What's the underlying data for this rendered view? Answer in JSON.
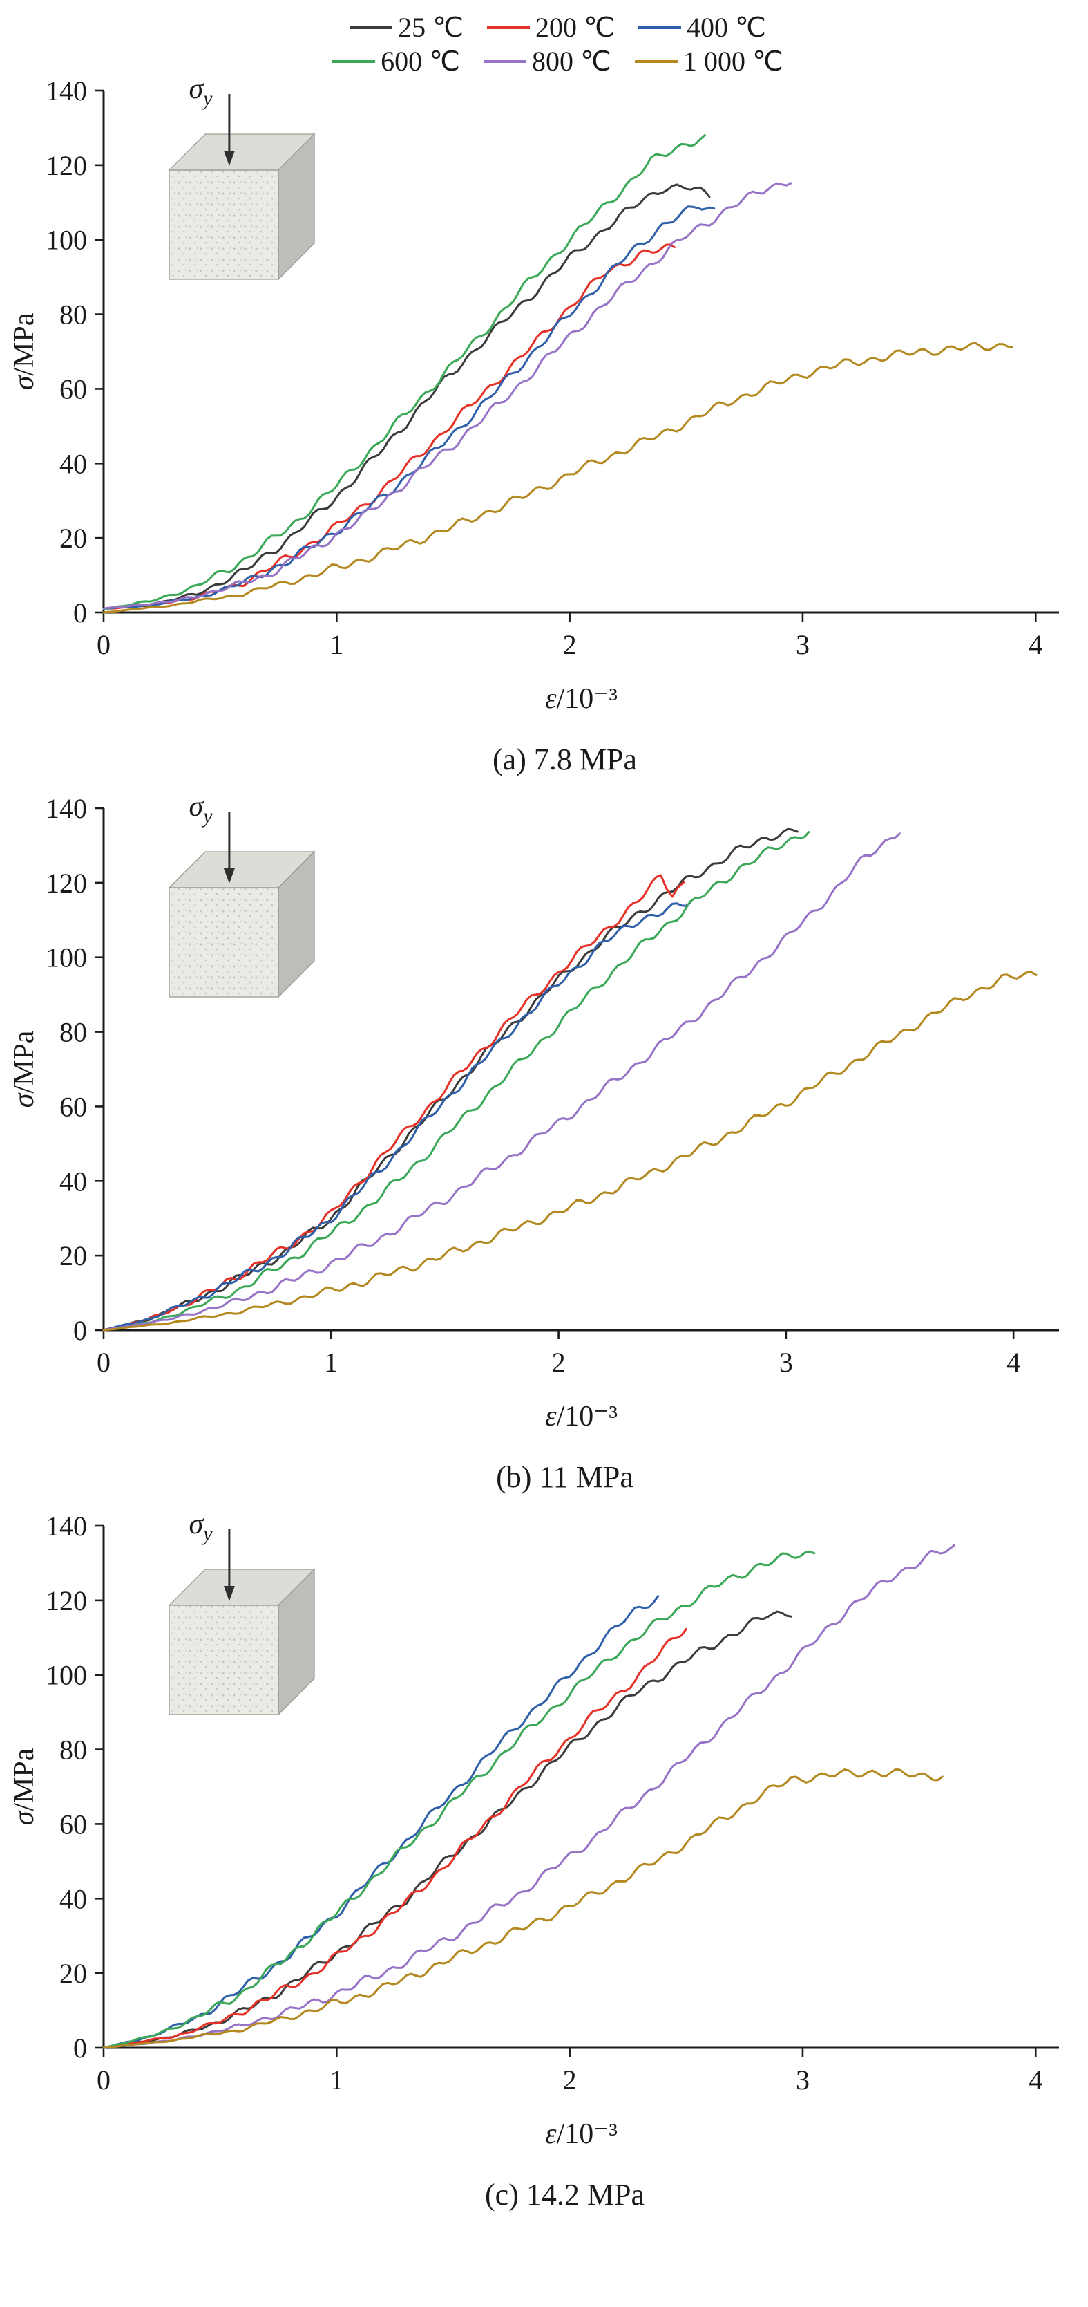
{
  "figure": {
    "legend": {
      "rows": [
        [
          {
            "label": "25 ℃",
            "color": "#3b3b3b"
          },
          {
            "label": "200 ℃",
            "color": "#e53127"
          },
          {
            "label": "400 ℃",
            "color": "#2e5fa8"
          }
        ],
        [
          {
            "label": "600 ℃",
            "color": "#3aa857"
          },
          {
            "label": "800 ℃",
            "color": "#9673c6"
          },
          {
            "label": "1 000 ℃",
            "color": "#b3891f"
          }
        ]
      ]
    },
    "inset": {
      "symbol": "σ",
      "subscript": "y"
    }
  },
  "chart_data": [
    {
      "type": "line",
      "caption": "(a) 7.8 MPa",
      "xlabel": "ε/10⁻³",
      "ylabel": "σ/MPa",
      "xlim": [
        0,
        4.1
      ],
      "ylim": [
        0,
        140
      ],
      "xticks": [
        0,
        1,
        2,
        3,
        4
      ],
      "yticks": [
        0,
        20,
        40,
        60,
        80,
        100,
        120,
        140
      ],
      "legend_position": "top",
      "grid": false,
      "series": [
        {
          "name": "25 ℃",
          "color": "#3b3b3b",
          "x": [
            0,
            0.2,
            0.4,
            0.6,
            0.8,
            1.0,
            1.2,
            1.4,
            1.6,
            1.8,
            2.0,
            2.15,
            2.3,
            2.4,
            2.5,
            2.6
          ],
          "y": [
            1,
            2,
            5,
            11,
            20,
            31,
            44,
            58,
            71,
            83,
            95,
            103,
            110,
            114,
            114,
            112
          ]
        },
        {
          "name": "200 ℃",
          "color": "#e53127",
          "x": [
            0,
            0.2,
            0.4,
            0.6,
            0.8,
            1.0,
            1.2,
            1.4,
            1.6,
            1.8,
            2.0,
            2.15,
            2.3,
            2.45
          ],
          "y": [
            1,
            2,
            4,
            8,
            15,
            23,
            33,
            45,
            57,
            69,
            82,
            91,
            96,
            98
          ]
        },
        {
          "name": "400 ℃",
          "color": "#2e5fa8",
          "x": [
            0,
            0.2,
            0.4,
            0.6,
            0.8,
            1.0,
            1.2,
            1.4,
            1.6,
            1.8,
            2.0,
            2.2,
            2.4,
            2.55,
            2.62
          ],
          "y": [
            1,
            2,
            4,
            8,
            14,
            22,
            31,
            42,
            54,
            67,
            80,
            93,
            104,
            109,
            108
          ]
        },
        {
          "name": "600 ℃",
          "color": "#3aa857",
          "x": [
            0,
            0.2,
            0.4,
            0.6,
            0.8,
            1.0,
            1.2,
            1.4,
            1.6,
            1.8,
            2.0,
            2.2,
            2.35,
            2.5,
            2.58
          ],
          "y": [
            1,
            3,
            7,
            14,
            23,
            34,
            47,
            60,
            73,
            87,
            100,
            112,
            121,
            126,
            127
          ]
        },
        {
          "name": "800 ℃",
          "color": "#9673c6",
          "x": [
            0,
            0.3,
            0.5,
            0.7,
            0.9,
            1.1,
            1.3,
            1.5,
            1.7,
            1.9,
            2.1,
            2.3,
            2.5,
            2.7,
            2.85,
            2.95
          ],
          "y": [
            1,
            3,
            6,
            10,
            17,
            25,
            35,
            45,
            56,
            68,
            80,
            91,
            101,
            109,
            114,
            116
          ]
        },
        {
          "name": "1 000 ℃",
          "color": "#b3891f",
          "x": [
            0,
            0.3,
            0.6,
            0.9,
            1.2,
            1.5,
            1.8,
            2.1,
            2.4,
            2.7,
            3.0,
            3.2,
            3.5,
            3.7,
            3.9
          ],
          "y": [
            0,
            2,
            5,
            10,
            16,
            23,
            31,
            40,
            48,
            57,
            64,
            67,
            70,
            71,
            72
          ]
        }
      ]
    },
    {
      "type": "line",
      "caption": "(b) 11 MPa",
      "xlabel": "ε/10⁻³",
      "ylabel": "σ/MPa",
      "xlim": [
        0,
        4.2
      ],
      "ylim": [
        0,
        140
      ],
      "xticks": [
        0,
        1,
        2,
        3,
        4
      ],
      "yticks": [
        0,
        20,
        40,
        60,
        80,
        100,
        120,
        140
      ],
      "legend_position": "top",
      "grid": false,
      "series": [
        {
          "name": "25 ℃",
          "color": "#3b3b3b",
          "x": [
            0,
            0.2,
            0.4,
            0.6,
            0.8,
            1.0,
            1.2,
            1.4,
            1.6,
            1.8,
            2.0,
            2.2,
            2.4,
            2.6,
            2.8,
            2.95,
            3.05
          ],
          "y": [
            0,
            3,
            8,
            14,
            21,
            30,
            43,
            56,
            69,
            82,
            94,
            105,
            114,
            122,
            129,
            133,
            134
          ]
        },
        {
          "name": "200 ℃",
          "color": "#e53127",
          "x": [
            0,
            0.2,
            0.4,
            0.6,
            0.8,
            1.0,
            1.2,
            1.4,
            1.6,
            1.8,
            2.0,
            2.2,
            2.35,
            2.45,
            2.5,
            2.55
          ],
          "y": [
            0,
            3,
            8,
            15,
            22,
            31,
            45,
            58,
            71,
            84,
            96,
            107,
            115,
            122,
            117,
            120
          ]
        },
        {
          "name": "400 ℃",
          "color": "#2e5fa8",
          "x": [
            0,
            0.2,
            0.4,
            0.6,
            0.8,
            1.0,
            1.2,
            1.4,
            1.6,
            1.8,
            2.0,
            2.2,
            2.35,
            2.5,
            2.58
          ],
          "y": [
            0,
            3,
            8,
            14,
            21,
            30,
            42,
            55,
            68,
            81,
            93,
            104,
            110,
            113,
            115
          ]
        },
        {
          "name": "600 ℃",
          "color": "#3aa857",
          "x": [
            0,
            0.2,
            0.4,
            0.6,
            0.8,
            1.0,
            1.2,
            1.4,
            1.6,
            1.8,
            2.0,
            2.2,
            2.4,
            2.6,
            2.8,
            3.0,
            3.1
          ],
          "y": [
            0,
            2,
            6,
            11,
            18,
            26,
            35,
            46,
            58,
            70,
            82,
            94,
            105,
            115,
            124,
            131,
            134
          ]
        },
        {
          "name": "800 ℃",
          "color": "#9673c6",
          "x": [
            0,
            0.3,
            0.6,
            0.9,
            1.2,
            1.5,
            1.8,
            2.1,
            2.4,
            2.7,
            3.0,
            3.2,
            3.35,
            3.5
          ],
          "y": [
            0,
            3,
            8,
            15,
            24,
            35,
            47,
            60,
            74,
            89,
            105,
            117,
            127,
            134
          ]
        },
        {
          "name": "1 000 ℃",
          "color": "#b3891f",
          "x": [
            0,
            0.3,
            0.6,
            0.9,
            1.2,
            1.5,
            1.8,
            2.1,
            2.4,
            2.7,
            3.0,
            3.3,
            3.6,
            3.8,
            3.95,
            4.1
          ],
          "y": [
            0,
            2,
            5,
            9,
            14,
            20,
            27,
            34,
            42,
            51,
            61,
            72,
            83,
            90,
            94,
            96
          ]
        }
      ]
    },
    {
      "type": "line",
      "caption": "(c) 14.2 MPa",
      "xlabel": "ε/10⁻³",
      "ylabel": "σ/MPa",
      "xlim": [
        0,
        4.1
      ],
      "ylim": [
        0,
        140
      ],
      "xticks": [
        0,
        1,
        2,
        3,
        4
      ],
      "yticks": [
        0,
        20,
        40,
        60,
        80,
        100,
        120,
        140
      ],
      "legend_position": "top",
      "grid": false,
      "series": [
        {
          "name": "25 ℃",
          "color": "#3b3b3b",
          "x": [
            0,
            0.3,
            0.5,
            0.7,
            0.9,
            1.1,
            1.3,
            1.5,
            1.7,
            1.9,
            2.1,
            2.3,
            2.5,
            2.7,
            2.85,
            2.95
          ],
          "y": [
            0,
            3,
            7,
            13,
            21,
            30,
            40,
            52,
            63,
            75,
            86,
            96,
            104,
            111,
            116,
            117
          ]
        },
        {
          "name": "200 ℃",
          "color": "#e53127",
          "x": [
            0,
            0.3,
            0.5,
            0.7,
            0.9,
            1.1,
            1.3,
            1.5,
            1.7,
            1.9,
            2.1,
            2.3,
            2.42,
            2.5
          ],
          "y": [
            0,
            3,
            7,
            13,
            20,
            29,
            39,
            51,
            64,
            77,
            89,
            100,
            108,
            113
          ]
        },
        {
          "name": "400 ℃",
          "color": "#2e5fa8",
          "x": [
            0,
            0.2,
            0.4,
            0.6,
            0.8,
            1.0,
            1.2,
            1.4,
            1.6,
            1.8,
            2.0,
            2.15,
            2.28,
            2.38
          ],
          "y": [
            0,
            3,
            8,
            16,
            25,
            36,
            49,
            62,
            75,
            88,
            100,
            110,
            117,
            121
          ]
        },
        {
          "name": "600 ℃",
          "color": "#3aa857",
          "x": [
            0,
            0.2,
            0.4,
            0.6,
            0.8,
            1.0,
            1.2,
            1.4,
            1.6,
            1.8,
            2.0,
            2.2,
            2.4,
            2.6,
            2.8,
            2.95,
            3.05
          ],
          "y": [
            0,
            3,
            8,
            15,
            25,
            36,
            48,
            60,
            72,
            84,
            95,
            106,
            115,
            123,
            129,
            132,
            133
          ]
        },
        {
          "name": "800 ℃",
          "color": "#9673c6",
          "x": [
            0,
            0.3,
            0.6,
            0.9,
            1.2,
            1.5,
            1.8,
            2.1,
            2.4,
            2.7,
            3.0,
            3.2,
            3.4,
            3.55,
            3.65
          ],
          "y": [
            0,
            2,
            6,
            12,
            20,
            30,
            42,
            56,
            72,
            89,
            106,
            118,
            127,
            132,
            134
          ]
        },
        {
          "name": "1 000 ℃",
          "color": "#b3891f",
          "x": [
            0,
            0.3,
            0.6,
            0.9,
            1.2,
            1.5,
            1.8,
            2.1,
            2.4,
            2.6,
            2.8,
            2.95,
            3.1,
            3.3,
            3.5,
            3.6
          ],
          "y": [
            0,
            2,
            5,
            10,
            16,
            24,
            32,
            41,
            51,
            59,
            67,
            72,
            73,
            74,
            73,
            73
          ]
        }
      ]
    }
  ]
}
